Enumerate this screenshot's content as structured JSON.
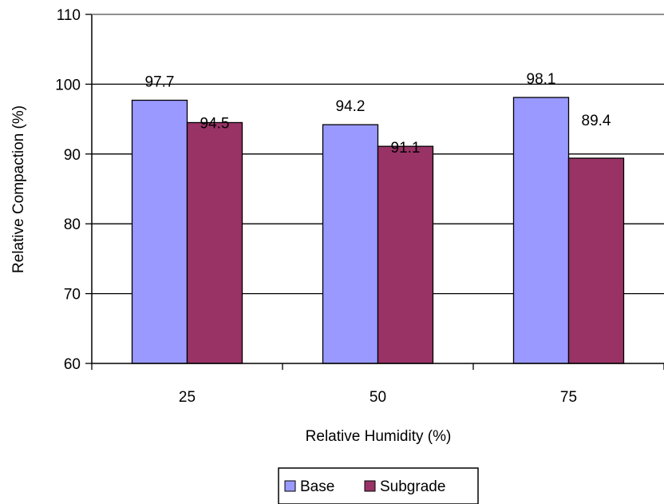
{
  "chart_data": {
    "type": "bar",
    "title": "",
    "xlabel": "Relative Humidity (%)",
    "ylabel": "Relative Compaction (%)",
    "categories": [
      "25",
      "50",
      "75"
    ],
    "series": [
      {
        "name": "Base",
        "values": [
          97.7,
          94.2,
          98.1
        ],
        "color": "#9999ff"
      },
      {
        "name": "Subgrade",
        "values": [
          94.5,
          91.1,
          89.4
        ],
        "color": "#993366"
      }
    ],
    "ylim": [
      60,
      110
    ],
    "yticks": [
      60,
      70,
      80,
      90,
      100,
      110
    ],
    "grid": true,
    "legend_position": "bottom",
    "data_labels": true
  }
}
